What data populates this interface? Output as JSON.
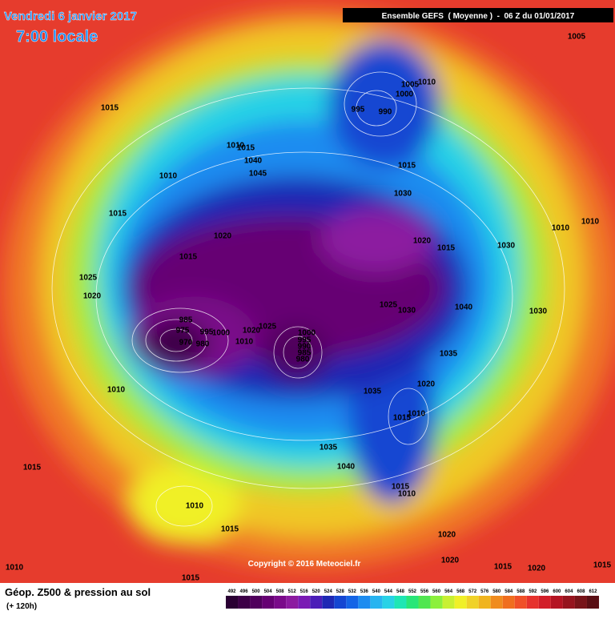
{
  "header": {
    "date": "Vendredi 6 janvier 2017",
    "time": "7:00 locale",
    "model": "Ensemble GEFS  ( Moyenne )  -  06 Z du 01/01/2017"
  },
  "copyright": "Copyright © 2016 Meteociel.fr",
  "footer": {
    "title": "Géop. Z500 & pression au sol",
    "lead": "(+ 120h)"
  },
  "colorbar": {
    "ticks": [
      492,
      496,
      500,
      504,
      508,
      512,
      516,
      520,
      524,
      528,
      532,
      536,
      540,
      544,
      548,
      552,
      556,
      560,
      564,
      568,
      572,
      576,
      580,
      584,
      588,
      592,
      596,
      600,
      604,
      608,
      612
    ],
    "colors": [
      "#2a0033",
      "#3d0047",
      "#50005c",
      "#660073",
      "#7a0a8a",
      "#8c1aa0",
      "#7a1ab4",
      "#4b1eb8",
      "#1e28b4",
      "#1446d2",
      "#1464e6",
      "#1e8cf0",
      "#28b4f0",
      "#28d2e6",
      "#1ee6b4",
      "#28e678",
      "#50e650",
      "#8cf03c",
      "#c8f032",
      "#f0f028",
      "#f0d228",
      "#f0b41e",
      "#f08c1e",
      "#f06e1e",
      "#f05028",
      "#e6322d",
      "#d21e28",
      "#b41423",
      "#96141e",
      "#781419",
      "#5a0f14"
    ]
  },
  "isobars": [
    "1015",
    "1010",
    "1015",
    "1020",
    "1015",
    "1025",
    "1020",
    "985",
    "975",
    "970",
    "995",
    "1000",
    "980",
    "1020",
    "1025",
    "1010",
    "1000",
    "995",
    "990",
    "985",
    "980",
    "1010",
    "1030",
    "1015",
    "1020",
    "1015",
    "1030",
    "1010",
    "1010",
    "1030",
    "1040",
    "1025",
    "1030",
    "1035",
    "1020",
    "1035",
    "1010",
    "1015",
    "1035",
    "1040",
    "1015",
    "1010",
    "1020",
    "1020",
    "1015",
    "1020",
    "1015",
    "1015",
    "1010",
    "1015",
    "1010",
    "1015",
    "995",
    "990",
    "1000",
    "1005",
    "1010",
    "1005",
    "1040",
    "1045",
    "1015",
    "1010"
  ]
}
